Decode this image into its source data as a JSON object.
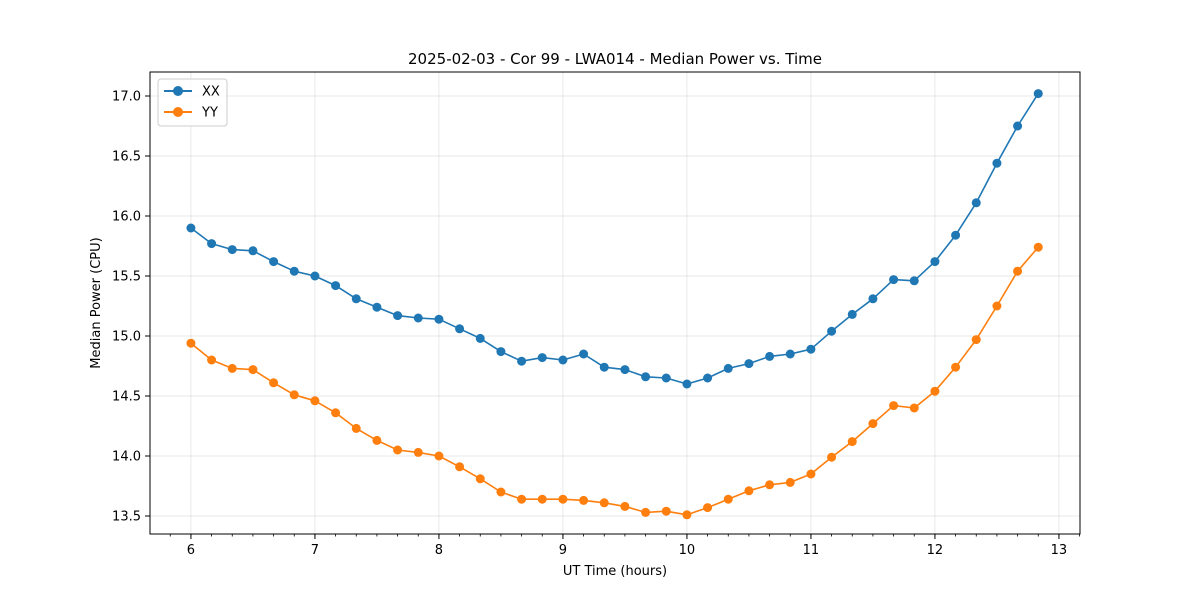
{
  "chart_data": {
    "type": "line",
    "title": "2025-02-03 - Cor 99 - LWA014 - Median Power vs. Time",
    "xlabel": "UT Time (hours)",
    "ylabel": "Median Power (CPU)",
    "xlim": [
      5.67,
      13.17
    ],
    "ylim": [
      13.35,
      17.2
    ],
    "xticks": [
      6,
      7,
      8,
      9,
      10,
      11,
      12,
      13
    ],
    "xtick_labels": [
      "6",
      "7",
      "8",
      "9",
      "10",
      "11",
      "12",
      "13"
    ],
    "yticks": [
      13.5,
      14.0,
      14.5,
      15.0,
      15.5,
      16.0,
      16.5,
      17.0
    ],
    "ytick_labels": [
      "13.5",
      "14.0",
      "14.5",
      "15.0",
      "15.5",
      "16.0",
      "16.5",
      "17.0"
    ],
    "grid": true,
    "legend_position": "top-left",
    "x": [
      6.0,
      6.1667,
      6.3333,
      6.5,
      6.6667,
      6.8333,
      7.0,
      7.1667,
      7.3333,
      7.5,
      7.6667,
      7.8333,
      8.0,
      8.1667,
      8.3333,
      8.5,
      8.6667,
      8.8333,
      9.0,
      9.1667,
      9.3333,
      9.5,
      9.6667,
      9.8333,
      10.0,
      10.1667,
      10.3333,
      10.5,
      10.6667,
      10.8333,
      11.0,
      11.1667,
      11.3333,
      11.5,
      11.6667,
      11.8333,
      12.0,
      12.1667,
      12.3333,
      12.5,
      12.6667,
      12.8333
    ],
    "series": [
      {
        "name": "XX",
        "color": "#1f77b4",
        "values": [
          15.9,
          15.77,
          15.72,
          15.71,
          15.62,
          15.54,
          15.5,
          15.42,
          15.31,
          15.24,
          15.17,
          15.15,
          15.14,
          15.06,
          14.98,
          14.87,
          14.79,
          14.82,
          14.8,
          14.85,
          14.74,
          14.72,
          14.66,
          14.65,
          14.6,
          14.65,
          14.73,
          14.77,
          14.83,
          14.85,
          14.89,
          15.04,
          15.18,
          15.31,
          15.47,
          15.46,
          15.62,
          15.84,
          16.11,
          16.44,
          16.75,
          17.02
        ]
      },
      {
        "name": "YY",
        "color": "#ff7f0e",
        "values": [
          14.94,
          14.8,
          14.73,
          14.72,
          14.61,
          14.51,
          14.46,
          14.36,
          14.23,
          14.13,
          14.05,
          14.03,
          14.0,
          13.91,
          13.81,
          13.7,
          13.64,
          13.64,
          13.64,
          13.63,
          13.61,
          13.58,
          13.53,
          13.54,
          13.51,
          13.57,
          13.64,
          13.71,
          13.76,
          13.78,
          13.85,
          13.99,
          14.12,
          14.27,
          14.42,
          14.4,
          14.54,
          14.74,
          14.97,
          15.25,
          15.54,
          15.74
        ]
      }
    ]
  }
}
